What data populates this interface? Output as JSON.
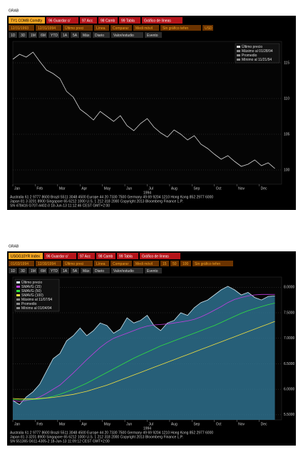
{
  "panels": [
    {
      "caption": "GRAB",
      "menu": [
        "TY1 COMB Comdty",
        "96 Guardar c/",
        "97 Acc",
        "98 Camb",
        "99 Tabla",
        "Gráfico de líneas"
      ],
      "row2": [
        "12/31/1993",
        "12/31/1994",
        "Último preci",
        "Línea",
        "Comparar",
        "Medi móvil",
        "Sin gráfico tefen",
        "USD"
      ],
      "row3": [
        "1D",
        "3D",
        "1M",
        "6M",
        "YTD",
        "1A",
        "5A",
        "Máx",
        "Diario",
        "Valor/estudio",
        "Evento"
      ],
      "footer": [
        "Australia 61 2 9777 8600 Brazil 5511 3048 4500 Europe 44 20 7330 7500 Germany 49 69 9204 1210 Hong Kong 852 2977 6000",
        "Japan 81 3 3201 8900          Singapore 65 6212 1000          U.S. 1 212 318 2000          Copyright 2013 Bloomberg Finance L.P.",
        "SN 478416 G707-4402-0 18-Jun-13 11:12:46 CEST GMT+2:00"
      ]
    },
    {
      "caption": "GRAB",
      "menu": [
        "USGG10YR Index",
        "96 Guardar c/",
        "97 Acc",
        "98 Camb",
        "99 Tabla",
        "Gráfico de líneas"
      ],
      "row2": [
        "01/03/1994",
        "12/30/1994",
        "Último preci",
        "Línea",
        "Comparar",
        "Medi móvil",
        "15",
        "50",
        "100",
        "Sin gráfico tefen"
      ],
      "row3": [
        "1D",
        "3D",
        "1M",
        "6M",
        "YTD",
        "1A",
        "5A",
        "Máx",
        "Diario",
        "Valor/estudio",
        "Evento"
      ],
      "footer": [
        "Australia 61 2 9777 8600 Brazil 5511 3048 4500 Europe 44 20 7330 7500 Germany 49 69 9204 1210 Hong Kong 852 2977 6000",
        "Japan 81 3 3201 8900          Singapore 65 6212 1000          U.S. 1 212 318 2000          Copyright 2013 Bloomberg Finance L.P.",
        "SN 551365 G611-4305-2 18-Jun-13 11:09:12 CEST GMT+2:00"
      ]
    }
  ],
  "chart_data": [
    {
      "type": "line",
      "xlabel": "1994",
      "legend": "upper right",
      "grid": true,
      "legend_extra": [
        "Máximo al 01/28/94",
        "Promedio",
        "Mínimo al 11/21/94"
      ],
      "xlim": [
        0,
        12
      ],
      "xticks": [
        {
          "value": 0,
          "label": "Jan"
        },
        {
          "value": 1,
          "label": "Feb"
        },
        {
          "value": 2,
          "label": "Mar"
        },
        {
          "value": 3,
          "label": "Apr"
        },
        {
          "value": 4,
          "label": "May"
        },
        {
          "value": 5,
          "label": "Jun"
        },
        {
          "value": 6,
          "label": "Jul"
        },
        {
          "value": 7,
          "label": "Aug"
        },
        {
          "value": 8,
          "label": "Sep"
        },
        {
          "value": 9,
          "label": "Oct"
        },
        {
          "value": 10,
          "label": "Nov"
        },
        {
          "value": 11,
          "label": "Dec"
        }
      ],
      "ylim": [
        98,
        118
      ],
      "yticks": [
        100,
        105,
        110,
        115
      ],
      "x": [
        0,
        0.3,
        0.6,
        0.9,
        1.2,
        1.5,
        1.8,
        2.1,
        2.4,
        2.7,
        3,
        3.3,
        3.6,
        3.9,
        4.2,
        4.5,
        4.8,
        5.1,
        5.4,
        5.7,
        6,
        6.3,
        6.6,
        6.9,
        7.2,
        7.5,
        7.8,
        8.1,
        8.4,
        8.7,
        9,
        9.3,
        9.6,
        9.9,
        10.2,
        10.5,
        10.8,
        11.1,
        11.4,
        11.7
      ],
      "series": [
        {
          "name": "Último precio",
          "color": "#d8d8d8",
          "values": [
            115.5,
            116.2,
            115.8,
            116.5,
            115.2,
            114.0,
            113.5,
            112.8,
            111.0,
            110.2,
            108.5,
            107.8,
            107.0,
            108.2,
            107.5,
            106.8,
            107.6,
            106.2,
            105.5,
            106.5,
            107.2,
            106.0,
            105.2,
            104.6,
            105.6,
            105.0,
            104.2,
            104.8,
            103.6,
            103.0,
            102.2,
            101.5,
            102.0,
            101.2,
            100.5,
            100.8,
            101.4,
            100.6,
            101.0,
            100.2
          ]
        }
      ]
    },
    {
      "type": "line",
      "xlabel": "1994",
      "legend": "upper left",
      "grid": true,
      "legend_extra": [
        "Máximo al 11/07/94",
        "Promedio",
        "Mínimo al 01/04/94"
      ],
      "xlim": [
        0,
        12
      ],
      "xticks": [
        {
          "value": 0,
          "label": "Jan"
        },
        {
          "value": 1,
          "label": "Feb"
        },
        {
          "value": 2,
          "label": "Mar"
        },
        {
          "value": 3,
          "label": "Apr"
        },
        {
          "value": 4,
          "label": "May"
        },
        {
          "value": 5,
          "label": "Jun"
        },
        {
          "value": 6,
          "label": "Jul"
        },
        {
          "value": 7,
          "label": "Aug"
        },
        {
          "value": 8,
          "label": "Sep"
        },
        {
          "value": 9,
          "label": "Oct"
        },
        {
          "value": 10,
          "label": "Nov"
        },
        {
          "value": 11,
          "label": "Dec"
        }
      ],
      "ylim": [
        5.4,
        8.2
      ],
      "yticks": [
        {
          "value": 5.5,
          "label": "5.5000"
        },
        {
          "value": 6,
          "label": "6.0000"
        },
        {
          "value": 6.5,
          "label": "6.5000"
        },
        {
          "value": 7,
          "label": "7.0000"
        },
        {
          "value": 7.5,
          "label": "7.5000"
        },
        {
          "value": 8,
          "label": "8.0000"
        }
      ],
      "x": [
        0,
        0.3,
        0.6,
        0.9,
        1.2,
        1.5,
        1.8,
        2.1,
        2.4,
        2.7,
        3,
        3.3,
        3.6,
        3.9,
        4.2,
        4.5,
        4.8,
        5.1,
        5.4,
        5.7,
        6,
        6.3,
        6.6,
        6.9,
        7.2,
        7.5,
        7.8,
        8.1,
        8.4,
        8.7,
        9,
        9.3,
        9.6,
        9.9,
        10.2,
        10.5,
        10.8,
        11.1,
        11.4,
        11.7
      ],
      "series": [
        {
          "name": "Último precio",
          "color": "#cfe6f0",
          "fill": "#2f7595",
          "values": [
            5.78,
            5.7,
            5.85,
            5.95,
            6.1,
            6.35,
            6.6,
            6.7,
            6.95,
            7.05,
            7.2,
            7.05,
            7.15,
            7.3,
            7.25,
            7.1,
            7.18,
            7.4,
            7.3,
            7.35,
            7.45,
            7.25,
            7.15,
            7.3,
            7.35,
            7.5,
            7.45,
            7.6,
            7.7,
            7.75,
            7.85,
            7.95,
            8.02,
            7.95,
            7.85,
            7.9,
            7.8,
            7.75,
            7.82,
            7.83
          ]
        },
        {
          "name": "SMAVG (15)",
          "color": "#c040e0",
          "values": [
            5.78,
            5.76,
            5.78,
            5.8,
            5.85,
            5.92,
            6.0,
            6.08,
            6.2,
            6.32,
            6.45,
            6.58,
            6.7,
            6.82,
            6.92,
            7.0,
            7.05,
            7.1,
            7.15,
            7.2,
            7.24,
            7.26,
            7.27,
            7.28,
            7.3,
            7.32,
            7.34,
            7.37,
            7.42,
            7.48,
            7.55,
            7.62,
            7.7,
            7.76,
            7.8,
            7.83,
            7.85,
            7.86,
            7.86,
            7.86
          ]
        },
        {
          "name": "SMAVG (50)",
          "color": "#30e040",
          "values": [
            5.8,
            5.79,
            5.79,
            5.8,
            5.81,
            5.83,
            5.86,
            5.9,
            5.95,
            6.0,
            6.06,
            6.12,
            6.19,
            6.26,
            6.33,
            6.4,
            6.47,
            6.54,
            6.61,
            6.67,
            6.73,
            6.79,
            6.85,
            6.9,
            6.95,
            7.0,
            7.05,
            7.1,
            7.15,
            7.2,
            7.25,
            7.31,
            7.37,
            7.43,
            7.49,
            7.54,
            7.58,
            7.62,
            7.66,
            7.69
          ]
        },
        {
          "name": "SMAVG (100)",
          "color": "#f0e040",
          "values": [
            5.82,
            5.81,
            5.81,
            5.81,
            5.82,
            5.83,
            5.84,
            5.86,
            5.88,
            5.9,
            5.93,
            5.96,
            6.0,
            6.04,
            6.08,
            6.13,
            6.18,
            6.23,
            6.28,
            6.33,
            6.38,
            6.43,
            6.48,
            6.53,
            6.58,
            6.63,
            6.68,
            6.73,
            6.78,
            6.83,
            6.88,
            6.93,
            6.98,
            7.03,
            7.08,
            7.13,
            7.18,
            7.23,
            7.28,
            7.33
          ]
        }
      ]
    }
  ]
}
